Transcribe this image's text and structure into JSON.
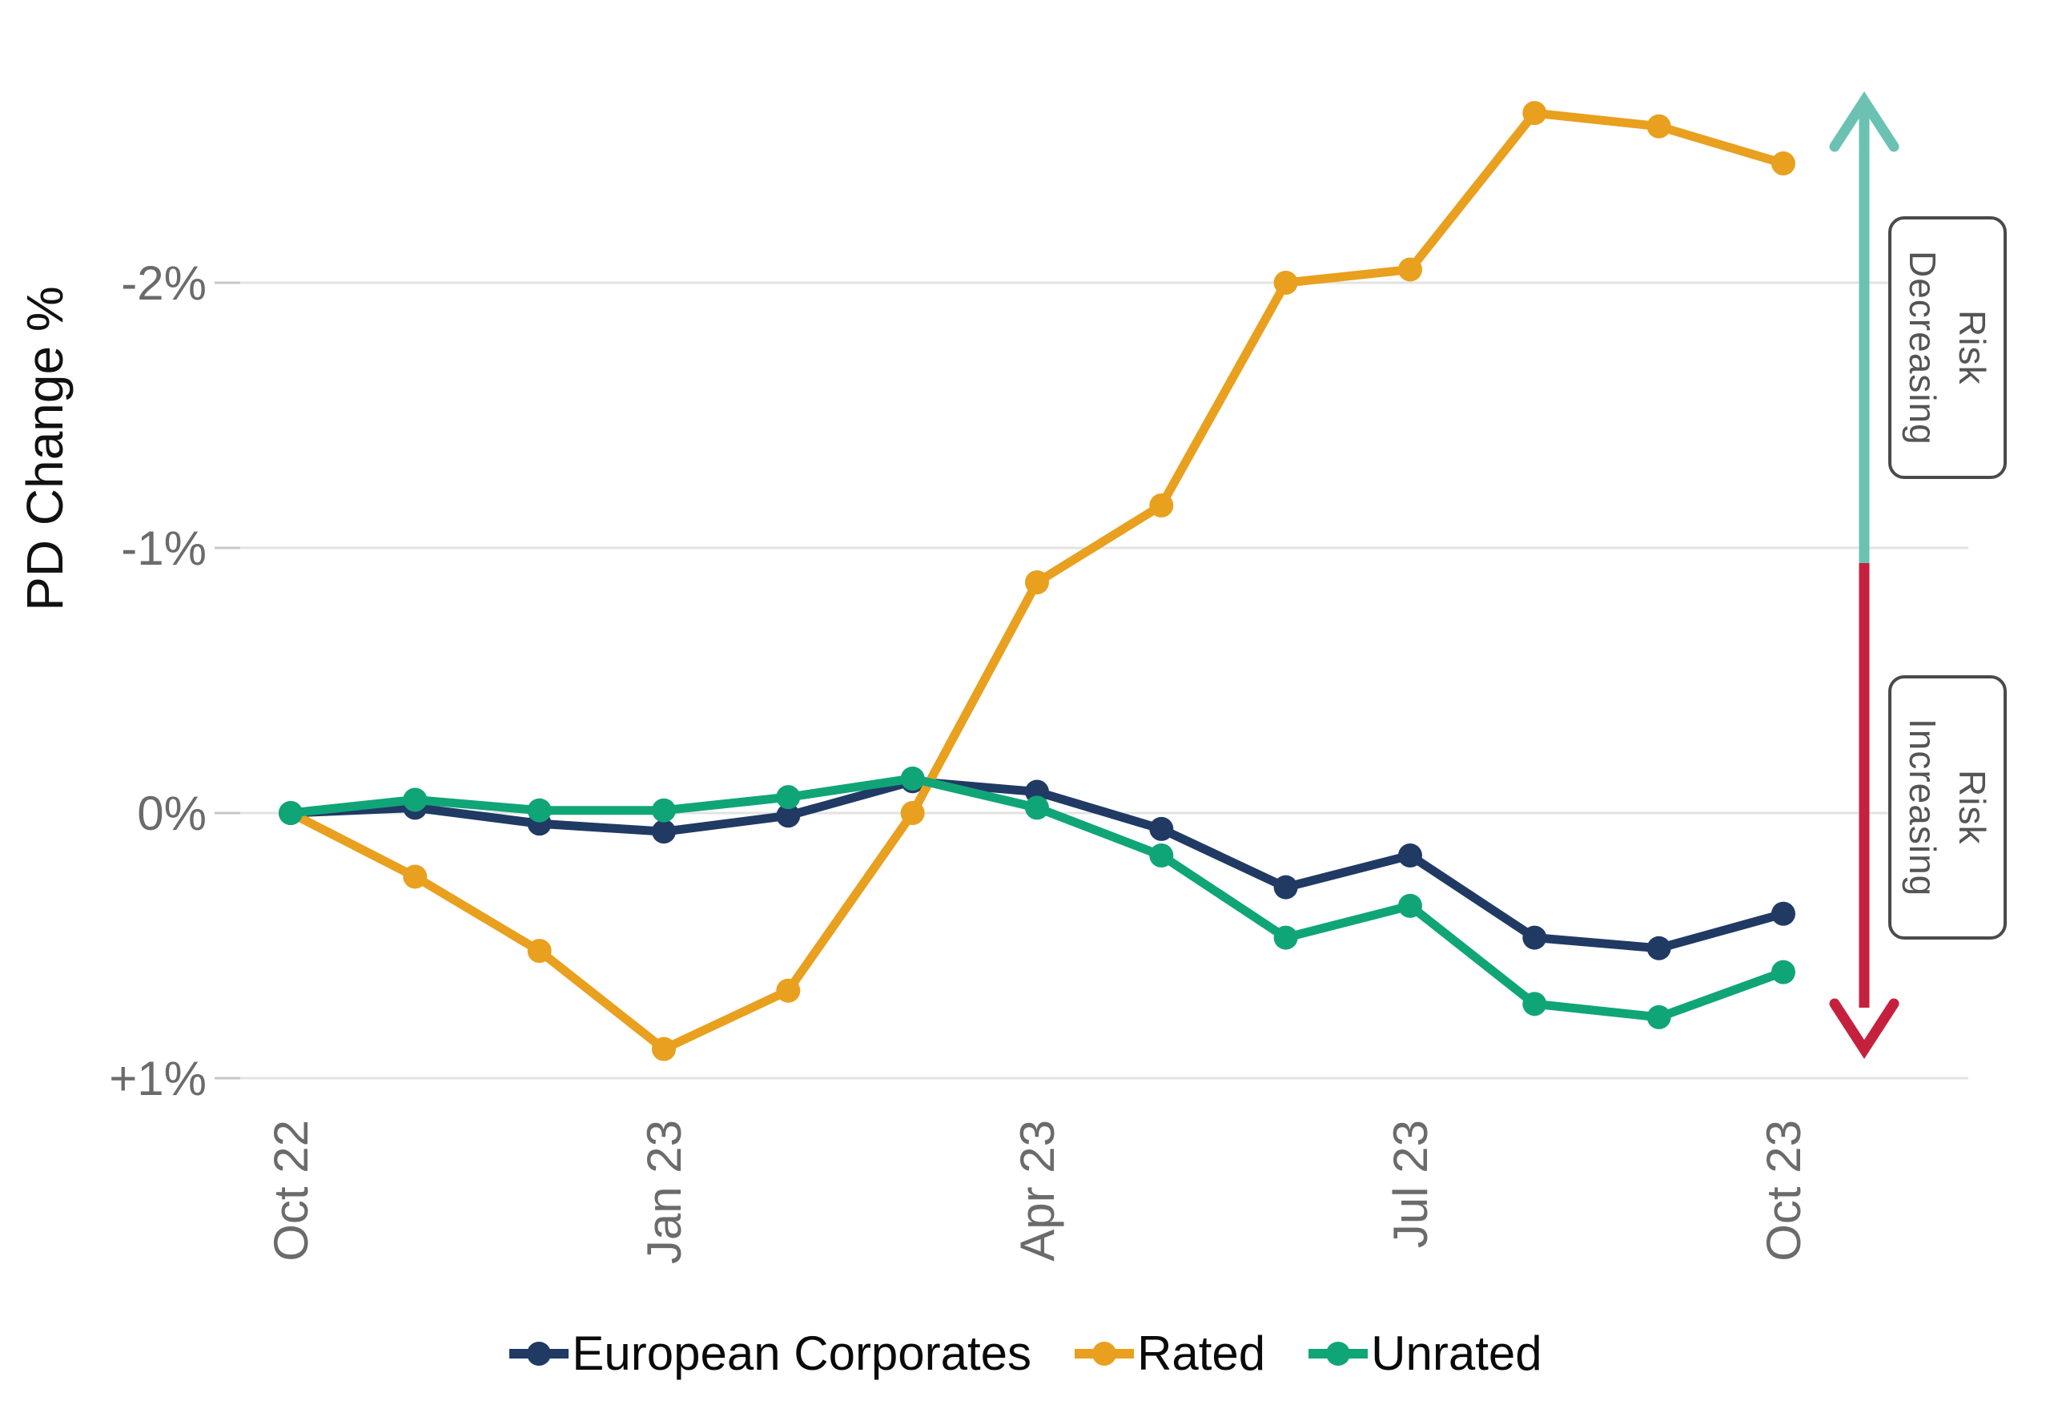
{
  "chart_data": {
    "type": "line",
    "title": "",
    "ylabel": "PD Change %",
    "xlabel": "",
    "y_axis_inverted": true,
    "ylim": [
      -2.85,
      1.12
    ],
    "grid": "horizontal",
    "legend_position": "bottom",
    "x": [
      "Oct 22",
      "Nov 22",
      "Dec 22",
      "Jan 23",
      "Feb 23",
      "Mar 23",
      "Apr 23",
      "May 23",
      "Jun 23",
      "Jul 23",
      "Aug 23",
      "Sep 23",
      "Oct 23"
    ],
    "x_ticks_shown": [
      "Oct 22",
      "Jan 23",
      "Apr 23",
      "Jul 23",
      "Oct 23"
    ],
    "y_ticks": [
      {
        "value": -2,
        "label": "-2%"
      },
      {
        "value": -1,
        "label": "-1%"
      },
      {
        "value": 0,
        "label": "0%"
      },
      {
        "value": 1,
        "label": "+1%"
      }
    ],
    "series": [
      {
        "name": "European Corporates",
        "color": "#203A64",
        "values": [
          0.0,
          -0.02,
          0.04,
          0.07,
          0.01,
          -0.12,
          -0.08,
          0.06,
          0.28,
          0.16,
          0.47,
          0.51,
          0.38
        ]
      },
      {
        "name": "Rated",
        "color": "#E8A01E",
        "values": [
          0.0,
          0.24,
          0.52,
          0.89,
          0.67,
          0.0,
          -0.87,
          -1.16,
          -2.0,
          -2.05,
          -2.64,
          -2.59,
          -2.45
        ]
      },
      {
        "name": "Unrated",
        "color": "#10A577",
        "values": [
          0.0,
          -0.05,
          -0.01,
          -0.01,
          -0.06,
          -0.13,
          -0.02,
          0.16,
          0.47,
          0.35,
          0.72,
          0.77,
          0.6
        ]
      }
    ]
  },
  "annotations": {
    "risk_decreasing": {
      "line1": "Risk",
      "line2": "Decreasing",
      "arrow_color": "#6BC2B3"
    },
    "risk_increasing": {
      "line1": "Risk",
      "line2": "Increasing",
      "arrow_color": "#C5213F"
    }
  },
  "style_colors": {
    "tick_text": "#6B6B6B",
    "axis_title_text": "#111111",
    "gridline": "#E3E3E3",
    "tick_mark": "#C7C7C7"
  }
}
